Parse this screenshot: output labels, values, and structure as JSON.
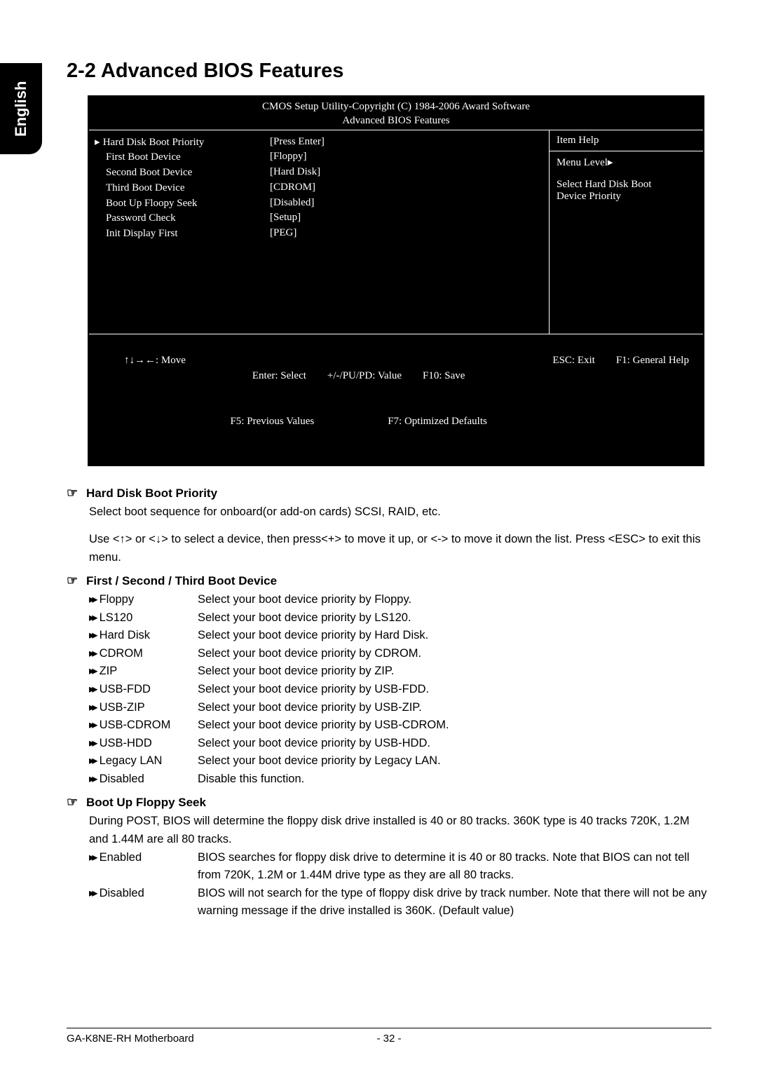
{
  "sideTab": "English",
  "pageTitle": "2-2    Advanced BIOS Features",
  "bios": {
    "header1": "CMOS Setup Utility-Copyright (C) 1984-2006 Award Software",
    "header2": "Advanced BIOS Features",
    "labels": [
      "Hard Disk Boot Priority",
      "First Boot Device",
      "Second Boot Device",
      "Third Boot Device",
      "Boot Up Floopy Seek",
      "Password Check",
      "Init Display First"
    ],
    "values": [
      "[Press Enter]",
      "[Floppy]",
      "[Hard Disk]",
      "[CDROM]",
      "[Disabled]",
      "[Setup]",
      "[PEG]"
    ],
    "help": {
      "title": "Item Help",
      "menuLevel": "Menu Level▸",
      "line1": "Select Hard Disk Boot",
      "line2": "Device Priority"
    },
    "footer": {
      "move": "↑↓→←: Move",
      "select": "Enter: Select",
      "value": "+/-/PU/PD: Value",
      "save": "F10: Save",
      "exit": "ESC: Exit",
      "help": "F1: General Help",
      "prev": "F5: Previous Values",
      "opt": "F7: Optimized Defaults"
    }
  },
  "sections": {
    "hardDisk": {
      "title": "Hard Disk Boot Priority",
      "p1": "Select boot sequence for onboard(or add-on cards) SCSI, RAID, etc.",
      "p2": "Use <↑> or <↓> to select a device, then press<+> to move it up, or <-> to move it down the list. Press <ESC> to exit this menu."
    },
    "bootDevice": {
      "title": "First / Second / Third Boot Device",
      "options": [
        {
          "name": "Floppy",
          "desc": "Select your boot device priority by Floppy."
        },
        {
          "name": "LS120",
          "desc": "Select your boot device priority by LS120."
        },
        {
          "name": "Hard Disk",
          "desc": "Select your boot device priority by Hard Disk."
        },
        {
          "name": "CDROM",
          "desc": "Select your boot device priority by CDROM."
        },
        {
          "name": "ZIP",
          "desc": "Select your boot device priority by ZIP."
        },
        {
          "name": "USB-FDD",
          "desc": "Select your boot device priority by USB-FDD."
        },
        {
          "name": "USB-ZIP",
          "desc": "Select your boot device priority by USB-ZIP."
        },
        {
          "name": "USB-CDROM",
          "desc": "Select your boot device priority by USB-CDROM."
        },
        {
          "name": "USB-HDD",
          "desc": "Select your boot device priority by USB-HDD."
        },
        {
          "name": "Legacy LAN",
          "desc": "Select your boot device priority by Legacy LAN."
        },
        {
          "name": "Disabled",
          "desc": "Disable this function."
        }
      ]
    },
    "floppySeek": {
      "title": "Boot Up Floppy Seek",
      "p1": "During POST, BIOS will determine the floppy disk drive installed is 40 or 80 tracks. 360K type is 40 tracks 720K, 1.2M and 1.44M are all 80 tracks.",
      "options": [
        {
          "name": "Enabled",
          "desc": "BIOS searches for floppy disk drive to determine it is 40 or 80 tracks. Note that BIOS can not tell from 720K, 1.2M or 1.44M drive type as they are all 80 tracks."
        },
        {
          "name": "Disabled",
          "desc": "BIOS will not search for the type of floppy disk drive by track number. Note that there will not be any warning message if the drive installed is 360K. (Default value)"
        }
      ]
    }
  },
  "footer": {
    "left": "GA-K8NE-RH Motherboard",
    "center": "- 32 -"
  }
}
